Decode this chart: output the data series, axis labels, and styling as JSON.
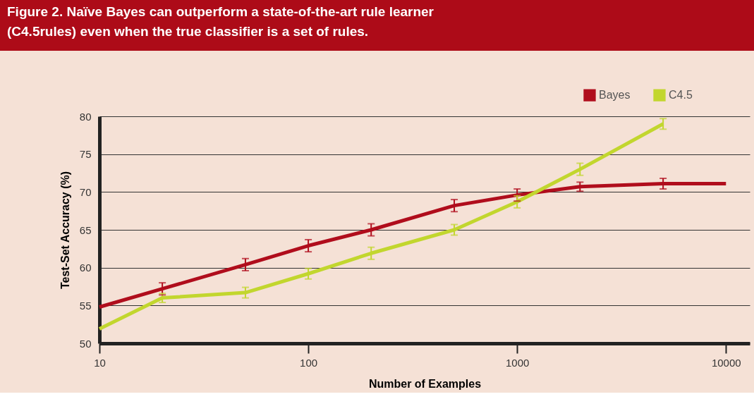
{
  "chart_data": {
    "type": "line",
    "title": "Figure 2. Naïve Bayes can outperform a state-of-the-art rule learner (C4.5rules) even when the true classifier is a set of rules.",
    "xlabel": "Number of Examples",
    "ylabel": "Test-Set Accuracy (%)",
    "log": "x",
    "xlim": [
      10,
      13000
    ],
    "xticks": [
      10,
      100,
      1000,
      10000
    ],
    "ylim": [
      50,
      80
    ],
    "yticks": [
      50,
      55,
      60,
      65,
      70,
      75,
      80
    ],
    "grid": "y",
    "legend": "top right",
    "marker": "none",
    "line_style": "solid",
    "series": [
      {
        "name": "Bayes",
        "color": "#b00d1c",
        "x": [
          10,
          20,
          50,
          100,
          200,
          500,
          1000,
          2000,
          5000,
          10000
        ],
        "values": [
          54.8,
          57.2,
          60.4,
          62.9,
          65.0,
          68.2,
          69.6,
          70.7,
          71.1,
          71.1
        ],
        "errors": [
          null,
          0.8,
          0.8,
          0.8,
          0.8,
          0.8,
          0.8,
          0.6,
          0.7,
          null
        ]
      },
      {
        "name": "C4.5",
        "color": "#c2d62e",
        "x": [
          10,
          20,
          50,
          100,
          200,
          500,
          1000,
          2000,
          5000
        ],
        "values": [
          51.9,
          56.0,
          56.7,
          59.2,
          61.9,
          65.0,
          68.7,
          73.0,
          79.0
        ],
        "errors": [
          null,
          0.6,
          0.7,
          0.7,
          0.8,
          0.7,
          0.8,
          0.8,
          0.7
        ]
      }
    ]
  }
}
